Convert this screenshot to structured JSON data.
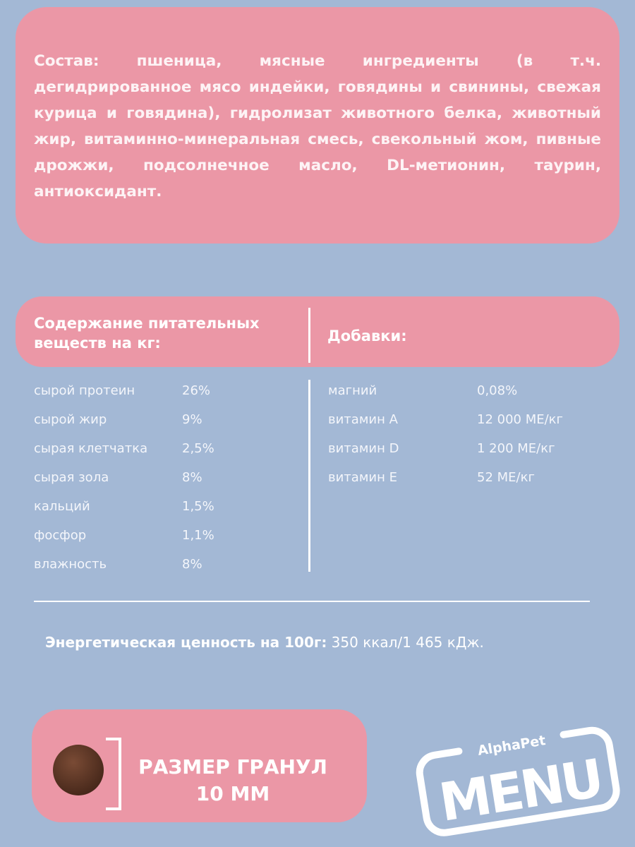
{
  "composition": {
    "text": "Состав: пшеница, мясные ингредиенты (в т.ч. дегидрированное мясо индейки, говядины и свинины, свежая курица и говядина), гидролизат животного белка, животный жир, витаминно-минеральная смесь, свекольный жом, пивные дрожжи, подсолнечное масло, DL-метионин, таурин, антиоксидант."
  },
  "nutrients": {
    "title": "Содержание питательных веществ на кг:",
    "items": [
      {
        "name": "сырой протеин",
        "value": "26%"
      },
      {
        "name": "сырой жир",
        "value": "9%"
      },
      {
        "name": "сырая клетчатка",
        "value": "2,5%"
      },
      {
        "name": "сырая зола",
        "value": "8%"
      },
      {
        "name": "кальций",
        "value": "1,5%"
      },
      {
        "name": "фосфор",
        "value": "1,1%"
      },
      {
        "name": "влажность",
        "value": "8%"
      }
    ]
  },
  "additives": {
    "title": "Добавки:",
    "items": [
      {
        "name": "магний",
        "value": "0,08%"
      },
      {
        "name": "витамин А",
        "value": "12 000 МЕ/кг"
      },
      {
        "name": "витамин D",
        "value": "1 200 МЕ/кг"
      },
      {
        "name": "витамин Е",
        "value": "52 МЕ/кг"
      }
    ]
  },
  "energy": {
    "label": "Энергетическая ценность на 100г:",
    "value": " 350 ккал/1 465 кДж."
  },
  "granule": {
    "line1": "РАЗМЕР ГРАНУЛ",
    "line2": "10 ММ"
  },
  "logo": {
    "brand": "AlphaPet",
    "name": "MENU"
  },
  "colors": {
    "background": "#a3b8d5",
    "pink": "#eb97a6",
    "text": "#ffffff"
  }
}
